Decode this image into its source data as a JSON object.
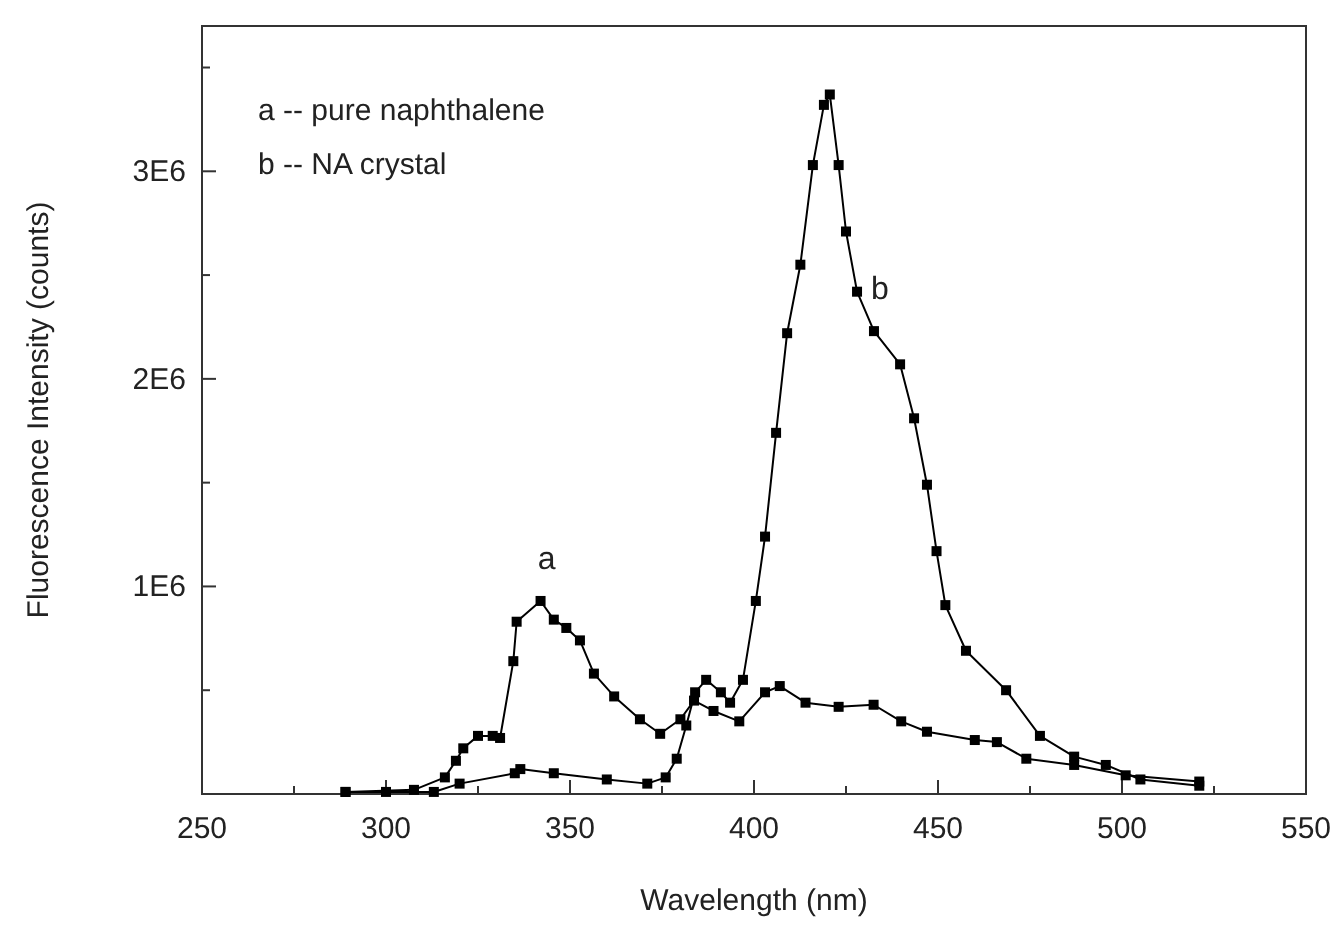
{
  "chart_data": {
    "type": "line",
    "xlabel": "Wavelength (nm)",
    "ylabel": "Fluorescence Intensity (counts)",
    "xlim": [
      250,
      550
    ],
    "xticks": [
      250,
      {
        "value": 275,
        "label": null
      },
      300,
      {
        "value": 325,
        "label": null
      },
      350,
      {
        "value": 375,
        "label": null
      },
      400,
      {
        "value": 425,
        "label": null
      },
      450,
      {
        "value": 475,
        "label": null
      },
      500,
      {
        "value": 525,
        "label": null
      },
      550
    ],
    "ylim": [
      0,
      3700000
    ],
    "yticks": [
      {
        "value": 0,
        "label": null
      },
      {
        "value": 500000,
        "label": null
      },
      {
        "value": 1000000,
        "label": "1E6"
      },
      {
        "value": 1500000,
        "label": null
      },
      {
        "value": 2000000,
        "label": "2E6"
      },
      {
        "value": 2500000,
        "label": null
      },
      {
        "value": 3000000,
        "label": "3E6"
      },
      {
        "value": 3500000,
        "label": null
      }
    ],
    "grid": false,
    "marker": "square",
    "line_style": "solid",
    "series": [
      {
        "color": "#000000",
        "x": [
          289,
          307.6,
          316,
          319,
          321,
          325,
          329,
          331,
          334.6,
          335.5,
          342,
          345.6,
          349,
          352.7,
          356.5,
          362,
          369,
          374.5,
          380,
          383.7,
          389,
          396,
          403,
          407,
          414,
          423,
          432.5,
          440,
          447,
          460,
          466,
          474,
          487,
          501,
          521
        ],
        "values": [
          10000,
          20000,
          80000,
          160000,
          220000,
          280000,
          280000,
          270000,
          640000,
          830000,
          930000,
          840000,
          800000,
          740000,
          580000,
          470000,
          360000,
          290000,
          360000,
          450000,
          400000,
          350000,
          490000,
          520000,
          440000,
          420000,
          430000,
          350000,
          300000,
          260000,
          250000,
          170000,
          140000,
          90000,
          60000
        ]
      },
      {
        "color": "#000000",
        "x": [
          289,
          300,
          313,
          320,
          335,
          336.5,
          345.6,
          360,
          371,
          376,
          379,
          381.6,
          384,
          387,
          391,
          393.5,
          397,
          400.5,
          403,
          406,
          409,
          412.6,
          416,
          419,
          420.6,
          423,
          425,
          428,
          432.6,
          439.7,
          443.5,
          447,
          449.6,
          452,
          457.6,
          468.5,
          477.7,
          487,
          495.6,
          505,
          521
        ],
        "values": [
          10000,
          10000,
          10000,
          50000,
          100000,
          120000,
          100000,
          70000,
          50000,
          80000,
          170000,
          330000,
          490000,
          550000,
          490000,
          440000,
          550000,
          930000,
          1240000,
          1740000,
          2220000,
          2550000,
          3030000,
          3320000,
          3370000,
          3030000,
          2710000,
          2420000,
          2230000,
          2070000,
          1810000,
          1490000,
          1170000,
          910000,
          690000,
          500000,
          280000,
          180000,
          140000,
          70000,
          40000
        ]
      }
    ],
    "annotations": [
      "a -- pure naphthalene",
      "b -- NA crystal",
      {
        "text": "a",
        "x": 342,
        "y": 930000
      },
      {
        "text": "b",
        "x": 432.6,
        "y": 2230000
      }
    ]
  }
}
